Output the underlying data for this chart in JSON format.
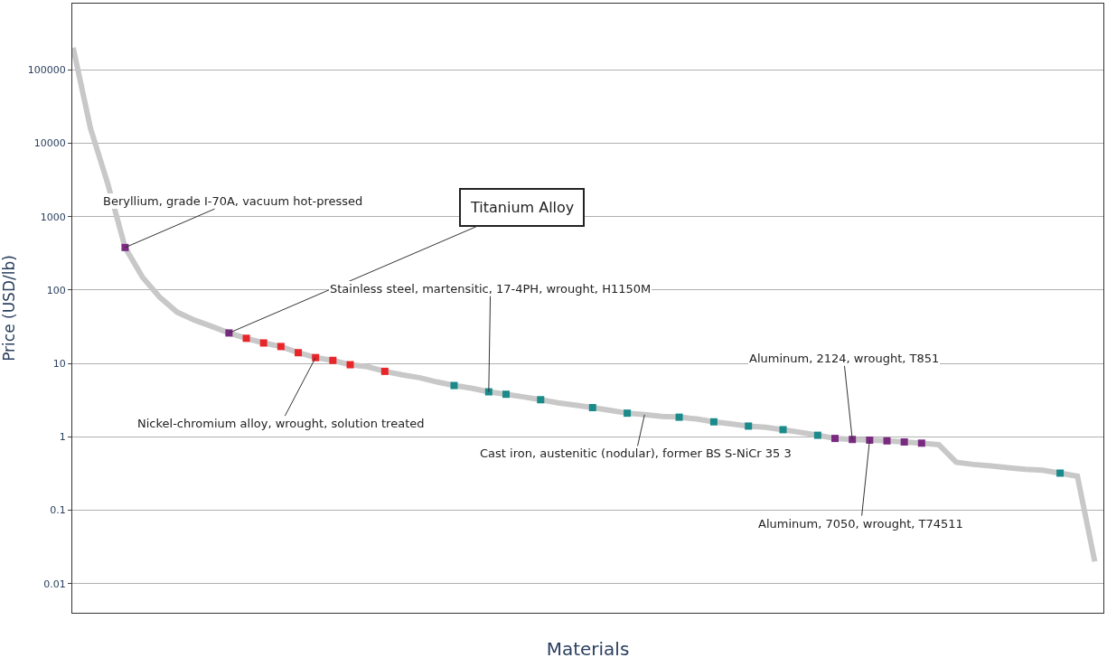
{
  "chart_data": {
    "type": "line",
    "xlabel": "Materials",
    "ylabel": "Price (USD/lb)",
    "log": "y",
    "grid": "y",
    "ylim": [
      0.004,
      800000
    ],
    "yticks": [
      0.01,
      0.1,
      1,
      10,
      100,
      1000,
      10000,
      100000
    ],
    "categories": [
      null,
      null,
      null,
      null,
      null,
      null,
      null,
      null,
      null,
      null,
      null,
      null,
      null,
      null,
      null,
      null,
      null,
      null,
      null,
      null,
      null,
      null,
      null,
      null,
      null,
      null,
      null,
      null,
      null,
      null,
      null,
      null,
      null,
      null,
      null,
      null,
      null,
      null,
      null,
      null,
      null,
      null,
      null,
      null,
      null,
      null,
      null,
      null,
      null,
      null,
      null,
      null,
      null,
      null,
      null,
      null,
      null,
      null,
      null,
      null
    ],
    "series": [
      {
        "color": "#c8c8c8",
        "marker": "none",
        "values": [
          200000,
          16000,
          2800,
          380,
          150,
          80,
          50,
          39,
          32,
          26,
          22,
          19,
          17,
          14,
          12,
          11,
          9.6,
          9,
          7.8,
          7,
          6.4,
          5.6,
          5,
          4.6,
          4.1,
          3.8,
          3.5,
          3.2,
          2.9,
          2.7,
          2.5,
          2.3,
          2.1,
          2.0,
          1.9,
          1.85,
          1.75,
          1.6,
          1.5,
          1.4,
          1.35,
          1.25,
          1.15,
          1.05,
          0.95,
          0.92,
          0.9,
          0.88,
          0.85,
          0.82,
          0.78,
          0.45,
          0.42,
          0.4,
          0.38,
          0.36,
          0.35,
          0.32,
          0.29,
          0.02
        ]
      },
      {
        "type": "scatter",
        "color": "#e8262a",
        "marker": "square",
        "values": [
          null,
          null,
          null,
          null,
          null,
          null,
          null,
          null,
          null,
          null,
          22,
          19,
          17,
          14,
          12,
          11,
          9.6,
          null,
          7.8,
          null,
          null,
          null,
          null,
          null,
          null,
          null,
          null,
          null,
          null,
          null,
          null,
          null,
          null,
          null,
          null,
          null,
          null,
          null,
          null,
          null,
          null,
          null,
          null,
          null,
          null,
          null,
          null,
          null,
          null,
          null,
          null,
          null,
          null,
          null,
          null,
          null,
          null,
          null,
          null,
          null
        ]
      },
      {
        "type": "scatter",
        "color": "#7b2a82",
        "marker": "square",
        "values": [
          null,
          null,
          null,
          380,
          null,
          null,
          null,
          null,
          null,
          26,
          null,
          null,
          null,
          null,
          null,
          null,
          null,
          null,
          null,
          null,
          null,
          null,
          null,
          null,
          null,
          null,
          null,
          null,
          null,
          null,
          null,
          null,
          null,
          null,
          null,
          null,
          null,
          null,
          null,
          null,
          null,
          null,
          null,
          null,
          0.95,
          0.92,
          0.9,
          0.88,
          0.85,
          0.82,
          null,
          null,
          null,
          null,
          null,
          null,
          null,
          null,
          null,
          null
        ]
      },
      {
        "type": "scatter",
        "color": "#1a8a8a",
        "marker": "square",
        "values": [
          null,
          null,
          null,
          null,
          null,
          null,
          null,
          null,
          null,
          null,
          null,
          null,
          null,
          null,
          null,
          null,
          null,
          null,
          null,
          null,
          null,
          null,
          5,
          null,
          4.1,
          3.8,
          null,
          3.2,
          null,
          null,
          2.5,
          null,
          2.1,
          null,
          null,
          1.85,
          null,
          1.6,
          null,
          1.4,
          null,
          1.25,
          null,
          1.05,
          null,
          null,
          null,
          null,
          null,
          null,
          null,
          null,
          null,
          null,
          null,
          null,
          null,
          0.32,
          null,
          null
        ]
      }
    ],
    "annotations": [
      "Beryllium, grade I-70A, vacuum hot-pressed",
      "Titanium Alloy",
      "Stainless steel, martensitic, 17-4PH, wrought, H1150M",
      "Nickel-chromium alloy, wrought, solution treated",
      "Aluminum, 2124, wrought, T851",
      "Cast iron, austenitic (nodular), former BS S-NiCr 35 3",
      "Aluminum, 7050, wrought, T74511"
    ]
  }
}
